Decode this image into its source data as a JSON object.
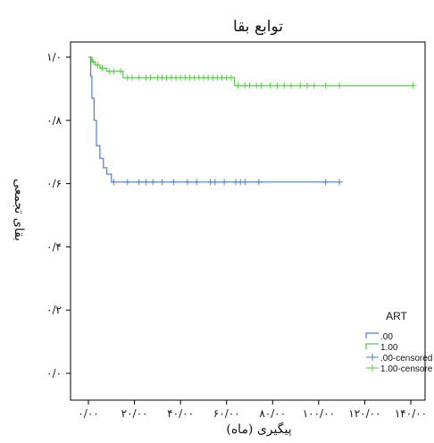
{
  "chart_data": {
    "type": "line",
    "title": "توابع بقا",
    "xlabel": "پیگیری (ماه)",
    "ylabel": "بقای تجمعی",
    "xlim": [
      0,
      140
    ],
    "ylim": [
      0,
      1
    ],
    "x_ticks": [
      0,
      20,
      40,
      60,
      80,
      100,
      120,
      140
    ],
    "x_tick_labels": [
      "۰/۰۰",
      "۲۰/۰۰",
      "۴۰/۰۰",
      "۶۰/۰۰",
      "۸۰/۰۰",
      "۱۰۰/۰۰",
      "۱۲۰/۰۰",
      "۱۴۰/۰۰"
    ],
    "y_ticks": [
      0,
      0.2,
      0.4,
      0.6,
      0.8,
      1.0
    ],
    "y_tick_labels": [
      "۰/۰",
      "۰/۲",
      "۰/۴",
      "۰/۶",
      "۰/۸",
      "۱/۰"
    ],
    "grid": false,
    "legend": {
      "title": "ART",
      "placement": "bottom-right",
      "entries": [
        ".00",
        "1.00",
        ".00-censored",
        "1.00-censore"
      ]
    },
    "series": [
      {
        "name": ".00",
        "color": "#4f7fd0",
        "steps": [
          [
            0,
            1.0
          ],
          [
            1,
            0.94
          ],
          [
            1.5,
            0.87
          ],
          [
            2.5,
            0.8
          ],
          [
            3.5,
            0.72
          ],
          [
            5,
            0.68
          ],
          [
            6.5,
            0.65
          ],
          [
            8,
            0.63
          ],
          [
            10,
            0.605
          ],
          [
            109,
            0.605
          ]
        ],
        "censored": [
          11,
          17,
          22,
          25,
          28,
          32,
          37,
          43,
          47,
          53,
          55,
          59,
          64,
          66,
          68,
          74,
          103,
          109
        ]
      },
      {
        "name": "1.00",
        "color": "#55cc44",
        "steps": [
          [
            0,
            1.0
          ],
          [
            1.5,
            0.985
          ],
          [
            3,
            0.975
          ],
          [
            5,
            0.965
          ],
          [
            8,
            0.955
          ],
          [
            15,
            0.935
          ],
          [
            63,
            0.935
          ],
          [
            63.5,
            0.91
          ],
          [
            141,
            0.91
          ]
        ],
        "censored": [
          2,
          4,
          6,
          9,
          11,
          14,
          17,
          19,
          22,
          25,
          27,
          30,
          32,
          34,
          36,
          38,
          40,
          42,
          44,
          46,
          48,
          50,
          52,
          54,
          56,
          58,
          60,
          62,
          65,
          68,
          70,
          73,
          75,
          79,
          82,
          85,
          88,
          92,
          95,
          98,
          103,
          109,
          141
        ]
      }
    ]
  }
}
